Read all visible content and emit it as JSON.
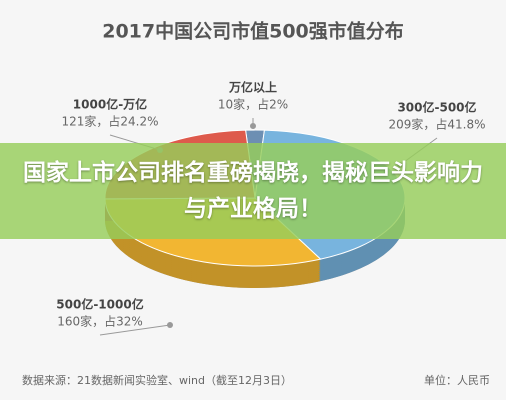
{
  "chart_data": {
    "type": "pie",
    "title": "2017中国公司市值500强市值分布",
    "categories": [
      "万亿以上",
      "300亿-500亿",
      "500亿-1000亿",
      "1000亿-万亿"
    ],
    "values": [
      2,
      41.8,
      32,
      24.2
    ],
    "value_labels": [
      "10家，占2%",
      "209家，占41.8%",
      "160家，占32%",
      "121家，占24.2%"
    ],
    "colors": [
      "#6d8fb3",
      "#78b4de",
      "#f2b632",
      "#de5a4c"
    ],
    "source": "数据来源：21数据新闻实验室、wind（截至12月3日）",
    "unit": "单位：人民币"
  },
  "banner": "国家上市公司排名重磅揭晓，揭秘巨头影响力与产业格局！"
}
